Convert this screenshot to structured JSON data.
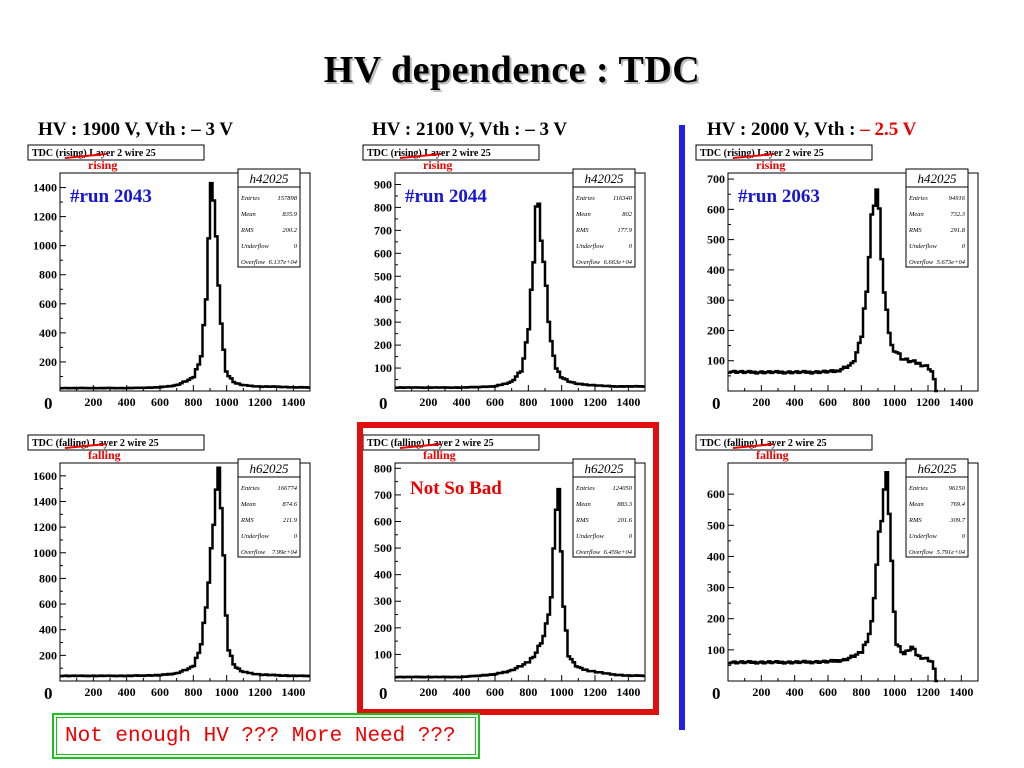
{
  "slide": {
    "title": "HV dependence : TDC",
    "columns": [
      {
        "prefix": "HV : 1900 V, Vth : – 3 V",
        "highlight": ""
      },
      {
        "prefix": "HV : 2100 V, Vth : – 3 V",
        "highlight": ""
      },
      {
        "prefix": "HV : 2000 V, Vth : ",
        "highlight": "– 2.5 V"
      }
    ],
    "note": "Not enough HV ??? More Need ???",
    "colors": {
      "text": "#000000",
      "red": "#e00000",
      "blue": "#1f1fe8",
      "green": "#19c319",
      "run": "#1515d8"
    }
  },
  "chart_data": [
    {
      "type": "line",
      "hist_title": "TDC (rising) Layer 2 wire 25",
      "annotation": "rising",
      "run": "#run 2043",
      "stats": {
        "name": "h42025",
        "Entries": "157898",
        "Mean": "835.9",
        "RMS": "200.2",
        "Underflow": "0",
        "Overflow": "6.137e+04"
      },
      "xlim": [
        0,
        1500
      ],
      "ylim": [
        0,
        1500
      ],
      "xticks": [
        0,
        200,
        400,
        600,
        800,
        1000,
        1200,
        1400
      ],
      "yticks": [
        0,
        200,
        400,
        600,
        800,
        1000,
        1200,
        1400
      ],
      "x": [
        0,
        200,
        400,
        600,
        700,
        800,
        850,
        880,
        900,
        915,
        930,
        950,
        980,
        1000,
        1050,
        1100,
        1200,
        1300,
        1400,
        1500
      ],
      "y": [
        20,
        20,
        20,
        25,
        40,
        90,
        250,
        700,
        1260,
        1470,
        1250,
        720,
        300,
        120,
        55,
        40,
        30,
        30,
        25,
        25
      ]
    },
    {
      "type": "line",
      "hist_title": "TDC (rising) Layer 2 wire 25",
      "annotation": "rising",
      "run": "#run 2044",
      "stats": {
        "name": "h42025",
        "Entries": "116340",
        "Mean": "802",
        "RMS": "177.9",
        "Underflow": "0",
        "Overflow": "6.663e+04"
      },
      "xlim": [
        0,
        1500
      ],
      "ylim": [
        0,
        950
      ],
      "xticks": [
        0,
        200,
        400,
        600,
        800,
        1000,
        1200,
        1400
      ],
      "yticks": [
        0,
        100,
        200,
        300,
        400,
        500,
        600,
        700,
        800,
        900
      ],
      "x": [
        0,
        200,
        400,
        600,
        700,
        760,
        800,
        830,
        850,
        870,
        900,
        930,
        960,
        1000,
        1050,
        1100,
        1200,
        1300,
        1400,
        1500
      ],
      "y": [
        15,
        15,
        15,
        20,
        40,
        90,
        250,
        560,
        850,
        750,
        500,
        250,
        110,
        60,
        40,
        30,
        25,
        20,
        20,
        20
      ]
    },
    {
      "type": "line",
      "hist_title": "TDC (rising) Layer 2 wire 25",
      "annotation": "rising",
      "run": "#run 2063",
      "stats": {
        "name": "h42025",
        "Entries": "94916",
        "Mean": "732.3",
        "RMS": "291.8",
        "Underflow": "0",
        "Overflow": "5.673e+04"
      },
      "xlim": [
        0,
        1500
      ],
      "ylim": [
        0,
        720
      ],
      "xticks": [
        0,
        200,
        400,
        600,
        800,
        1000,
        1200,
        1400
      ],
      "yticks": [
        0,
        100,
        200,
        300,
        400,
        500,
        600,
        700
      ],
      "x": [
        0,
        100,
        300,
        500,
        650,
        750,
        800,
        840,
        870,
        890,
        910,
        940,
        980,
        1050,
        1150,
        1200,
        1230,
        1250
      ],
      "y": [
        65,
        62,
        62,
        62,
        65,
        90,
        170,
        390,
        620,
        680,
        560,
        300,
        150,
        105,
        90,
        80,
        60,
        0
      ]
    },
    {
      "type": "line",
      "hist_title": "TDC (falling) Layer 2 wire 25",
      "annotation": "falling",
      "run": "",
      "stats": {
        "name": "h62025",
        "Entries": "166774",
        "Mean": "874.6",
        "RMS": "211.9",
        "Underflow": "0",
        "Overflow": "7.99e+04"
      },
      "xlim": [
        0,
        1500
      ],
      "ylim": [
        0,
        1700
      ],
      "xticks": [
        0,
        200,
        400,
        600,
        800,
        1000,
        1200,
        1400
      ],
      "yticks": [
        0,
        200,
        400,
        600,
        800,
        1000,
        1200,
        1400,
        1600
      ],
      "x": [
        0,
        200,
        400,
        600,
        700,
        800,
        850,
        900,
        930,
        950,
        970,
        990,
        1010,
        1050,
        1100,
        1200,
        1300,
        1400,
        1500
      ],
      "y": [
        40,
        40,
        40,
        45,
        60,
        110,
        300,
        850,
        1400,
        1600,
        1350,
        720,
        250,
        110,
        70,
        50,
        45,
        40,
        40
      ]
    },
    {
      "type": "line",
      "hist_title": "TDC (falling) Layer 2 wire 25",
      "annotation": "falling",
      "run": "",
      "stats": {
        "name": "h62025",
        "Entries": "124050",
        "Mean": "883.3",
        "RMS": "201.6",
        "Underflow": "0",
        "Overflow": "6.459e+04"
      },
      "xlim": [
        0,
        1500
      ],
      "ylim": [
        0,
        820
      ],
      "xticks": [
        0,
        200,
        400,
        600,
        800,
        1000,
        1200,
        1400
      ],
      "yticks": [
        0,
        100,
        200,
        300,
        400,
        500,
        600,
        700,
        800
      ],
      "x": [
        0,
        200,
        400,
        600,
        700,
        800,
        850,
        900,
        940,
        960,
        975,
        990,
        1010,
        1040,
        1080,
        1120,
        1200,
        1300,
        1400,
        1500
      ],
      "y": [
        15,
        15,
        15,
        25,
        40,
        70,
        110,
        180,
        320,
        560,
        760,
        650,
        300,
        100,
        60,
        45,
        35,
        25,
        20,
        20
      ]
    },
    {
      "type": "line",
      "hist_title": "TDC (falling) Layer 2 wire 25",
      "annotation": "falling",
      "run": "",
      "stats": {
        "name": "h62025",
        "Entries": "96150",
        "Mean": "769.4",
        "RMS": "309.7",
        "Underflow": "0",
        "Overflow": "5.791e+04"
      },
      "xlim": [
        0,
        1500
      ],
      "ylim": [
        0,
        700
      ],
      "xticks": [
        0,
        200,
        400,
        600,
        800,
        1000,
        1200,
        1400
      ],
      "yticks": [
        0,
        100,
        200,
        300,
        400,
        500,
        600
      ],
      "x": [
        0,
        200,
        400,
        600,
        700,
        800,
        860,
        900,
        940,
        960,
        980,
        1010,
        1060,
        1100,
        1140,
        1200,
        1230,
        1250
      ],
      "y": [
        60,
        60,
        60,
        62,
        68,
        90,
        170,
        420,
        620,
        640,
        400,
        120,
        85,
        110,
        80,
        70,
        60,
        0
      ]
    }
  ]
}
